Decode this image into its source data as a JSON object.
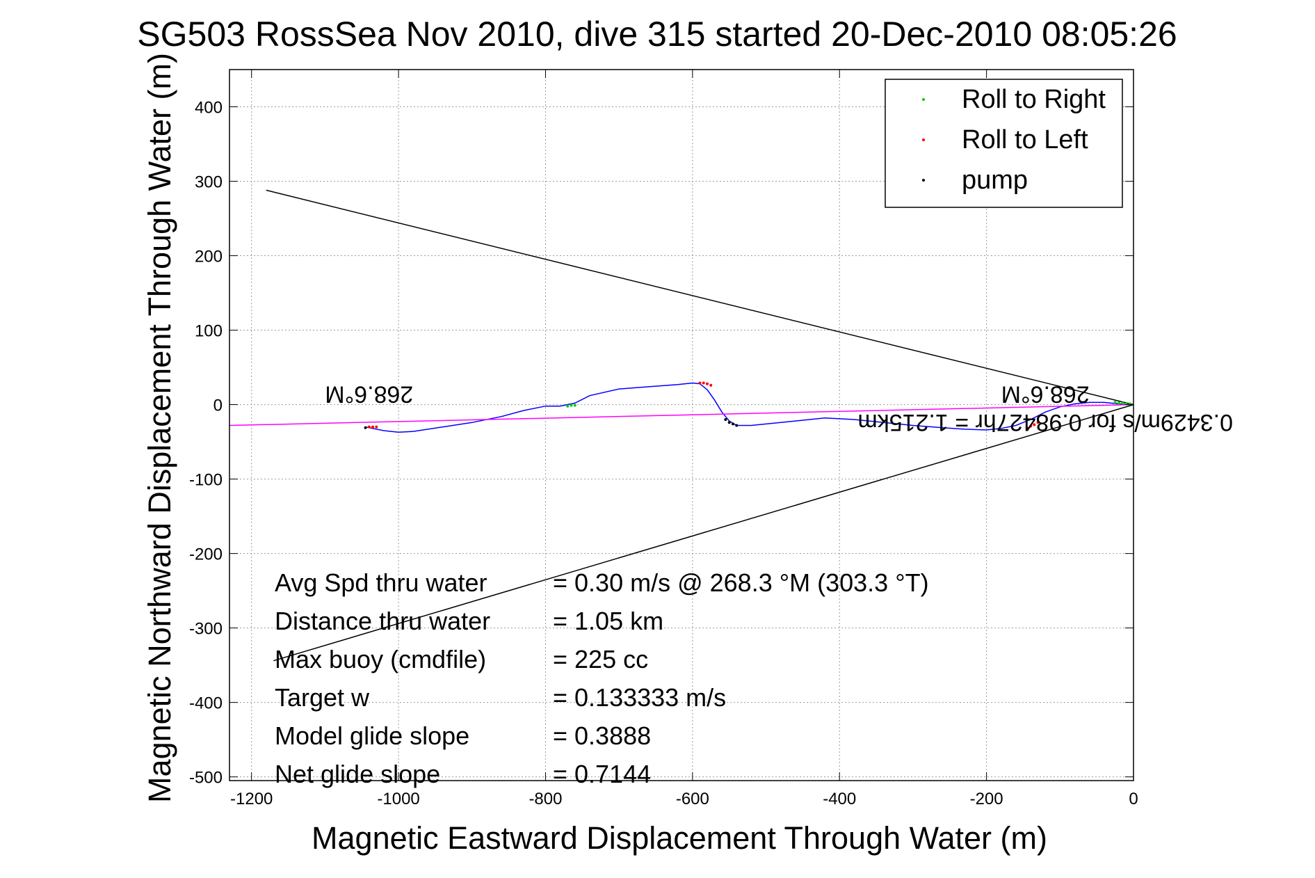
{
  "chart_data": {
    "type": "line",
    "title": "SG503 RossSea Nov 2010, dive 315 started 20-Dec-2010 08:05:26",
    "xlabel": "Magnetic Eastward Displacement Through Water (m)",
    "ylabel": "Magnetic Northward Displacement Through Water (m)",
    "xlim": [
      -1230,
      0
    ],
    "ylim": [
      -505,
      450
    ],
    "xticks": [
      -1200,
      -1000,
      -800,
      -600,
      -400,
      -200,
      0
    ],
    "yticks": [
      400,
      300,
      200,
      100,
      0,
      -100,
      -200,
      -300,
      -400,
      -500
    ],
    "grid": true,
    "legend": {
      "placement": "top-right",
      "entries": [
        {
          "label": "Roll to Right",
          "color": "#00cc00"
        },
        {
          "label": "Roll to Left",
          "color": "#ff0000"
        },
        {
          "label": "pump",
          "color": "#000000"
        }
      ]
    },
    "series": [
      {
        "kind": "track",
        "color": "#0000ff",
        "x": [
          0,
          -20,
          -40,
          -60,
          -80,
          -100,
          -120,
          -140,
          -160,
          -180,
          -200,
          -230,
          -260,
          -300,
          -340,
          -380,
          -420,
          -460,
          -500,
          -520,
          -540,
          -550,
          -560,
          -570,
          -580,
          -590,
          -600,
          -620,
          -660,
          -700,
          -740,
          -760,
          -780,
          -800,
          -830,
          -860,
          -900,
          -940,
          -980,
          -1000,
          -1020,
          -1045
        ],
        "y": [
          0,
          1,
          3,
          3,
          1,
          -3,
          -10,
          -20,
          -28,
          -32,
          -34,
          -33,
          -31,
          -28,
          -24,
          -20,
          -18,
          -22,
          -26,
          -28,
          -28,
          -22,
          -10,
          6,
          20,
          28,
          29,
          27,
          24,
          21,
          12,
          2,
          -2,
          -2,
          -8,
          -16,
          -24,
          -30,
          -36,
          -37,
          -35,
          -30
        ]
      },
      {
        "kind": "heading-line",
        "color": "#ff00ff",
        "x": [
          0,
          -1230
        ],
        "y": [
          0,
          -28
        ]
      },
      {
        "kind": "cone-upper",
        "color": "#000000",
        "x": [
          0,
          -1180
        ],
        "y": [
          0,
          288
        ]
      },
      {
        "kind": "cone-lower",
        "color": "#000000",
        "x": [
          0,
          -1170
        ],
        "y": [
          0,
          -344
        ]
      }
    ],
    "markers": [
      {
        "kind": "roll-right",
        "color": "#00cc00",
        "x": [
          -5,
          -10,
          -15,
          -20,
          -25,
          -760,
          -765,
          -770
        ],
        "y": [
          1,
          1,
          2,
          2,
          3,
          -1,
          -1,
          -2
        ]
      },
      {
        "kind": "roll-left",
        "color": "#ff0000",
        "x": [
          -130,
          -135,
          -140,
          -145,
          -575,
          -580,
          -585,
          -590,
          -1030,
          -1035,
          -1040
        ],
        "y": [
          -24,
          -27,
          -29,
          -31,
          26,
          28,
          29,
          29,
          -30,
          -30,
          -30
        ]
      },
      {
        "kind": "pump",
        "color": "#000000",
        "x": [
          -540,
          -545,
          -550,
          -555,
          -1045
        ],
        "y": [
          -28,
          -26,
          -24,
          -20,
          -31
        ]
      }
    ],
    "annotations": [
      {
        "id": "heading-left",
        "text": "268.6°M",
        "x": -1040,
        "y": 0,
        "rotated": true
      },
      {
        "id": "heading-right",
        "text": "268.6°M",
        "x": -120,
        "y": 0,
        "rotated": true
      },
      {
        "id": "speed-note",
        "text": "0.3429m/s for 0.98427hr = 1.215km",
        "x": -120,
        "y": -38,
        "rotated": true
      }
    ],
    "summary": [
      {
        "label": "Avg Spd thru water",
        "value": "=  0.30 m/s @ 268.3 °M (303.3 °T)"
      },
      {
        "label": "Distance thru water",
        "value": "=  1.05 km"
      },
      {
        "label": "Max buoy (cmdfile)",
        "value": "= 225 cc"
      },
      {
        "label": "Target w",
        "value": "= 0.133333 m/s"
      },
      {
        "label": "Model glide slope",
        "value": "= 0.3888"
      },
      {
        "label": "Net glide slope",
        "value": "= 0.7144"
      }
    ]
  }
}
